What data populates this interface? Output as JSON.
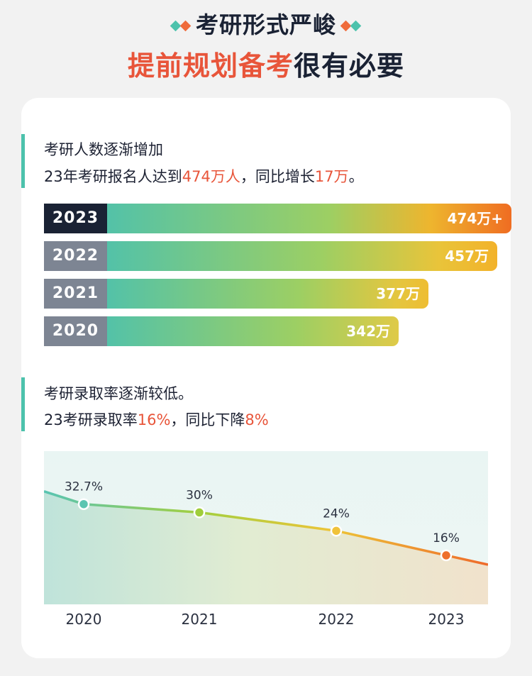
{
  "header": {
    "line1": "考研形式严峻",
    "line2_highlight": "提前规划备考",
    "line2_rest": "很有必要"
  },
  "colors": {
    "accent_red": "#e8553a",
    "teal": "#4cc2ac",
    "dark_navy": "#1a2234",
    "gray_label": "#7d8593"
  },
  "section1": {
    "title": "考研人数逐渐增加",
    "line_prefix": "23年考研报名人达到",
    "line_highlight1": "474万人",
    "line_mid": "，同比增长",
    "line_highlight2": "17万",
    "line_suffix": "。"
  },
  "section2": {
    "title": "考研录取率逐渐较低。",
    "line_prefix": "23考研录取率",
    "line_highlight1": "16%",
    "line_mid": "，同比下降",
    "line_highlight2": "8%"
  },
  "chart_data": [
    {
      "type": "bar",
      "orientation": "horizontal",
      "categories": [
        "2023",
        "2022",
        "2021",
        "2020"
      ],
      "values": [
        474,
        457,
        377,
        342
      ],
      "labels": [
        "474万+",
        "457万",
        "377万",
        "342万"
      ],
      "unit": "万",
      "xlim": [
        0,
        474
      ]
    },
    {
      "type": "area",
      "x": [
        "2020",
        "2021",
        "2022",
        "2023"
      ],
      "values": [
        32.7,
        30,
        24,
        16
      ],
      "labels": [
        "32.7%",
        "30%",
        "24%",
        "16%"
      ],
      "unit": "%",
      "ylim": [
        0,
        50
      ],
      "grid": false
    }
  ]
}
